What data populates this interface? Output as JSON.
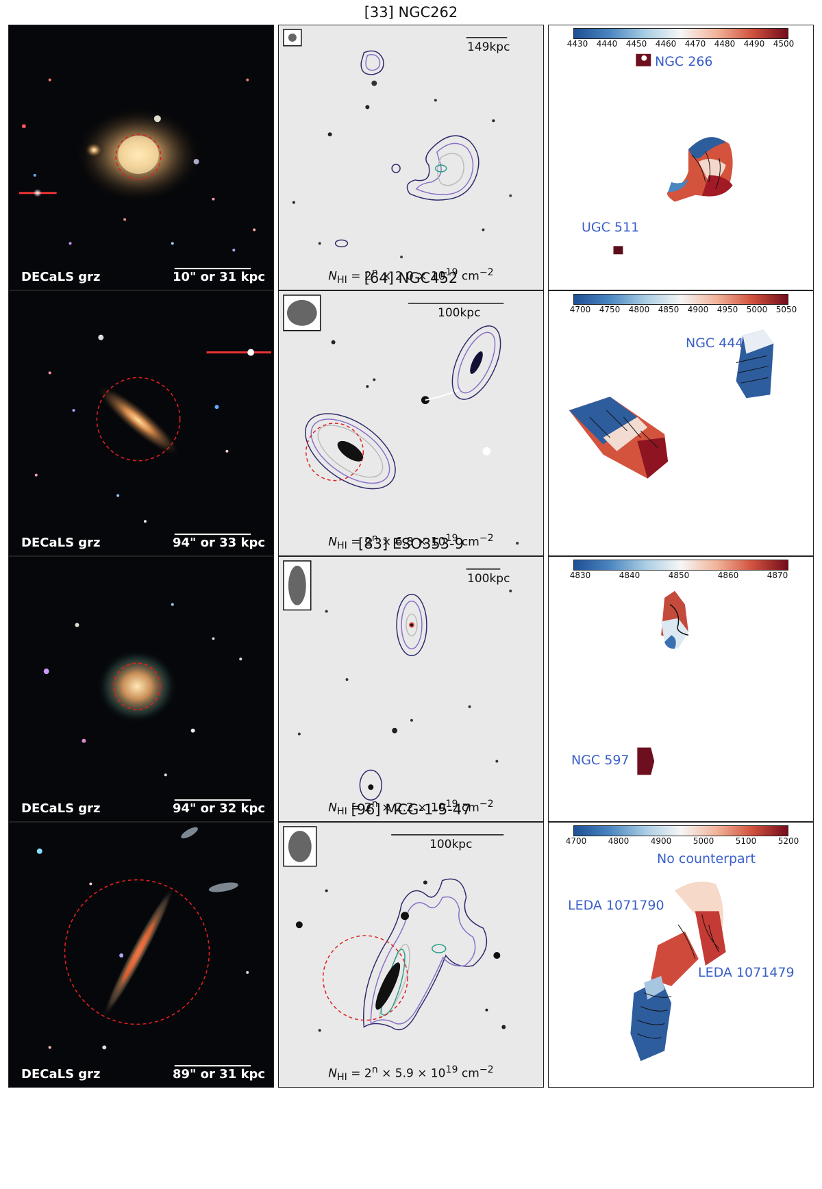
{
  "rows": [
    {
      "title": "[33] NGC262",
      "optical": {
        "survey": "DECaLS grz",
        "scale": "10\" or 31 kpc"
      },
      "hi": {
        "kpc": "149kpc",
        "nhi": "N_HI = 2^n × 2.0 × 10^19 cm^-2",
        "nhi_pre": "= 2",
        "nhi_exp": "n",
        "nhi_mid": " × 2.0 × 10",
        "nhi_pow": "19",
        "nhi_unit": " cm",
        "nhi_unit_pow": "−2"
      },
      "velocity": {
        "ticks": [
          "4430",
          "4440",
          "4450",
          "4460",
          "4470",
          "4480",
          "4490",
          "4500"
        ],
        "labels": [
          "NGC 266",
          "UGC 511"
        ]
      }
    },
    {
      "title": "[64] NGC452",
      "optical": {
        "survey": "DECaLS grz",
        "scale": "94\" or 33 kpc"
      },
      "hi": {
        "kpc": "100kpc",
        "nhi_pre": "= 2",
        "nhi_exp": "n",
        "nhi_mid": " × 6.8 × 10",
        "nhi_pow": "19",
        "nhi_unit": " cm",
        "nhi_unit_pow": "−2"
      },
      "velocity": {
        "ticks": [
          "4700",
          "4750",
          "4800",
          "4850",
          "4900",
          "4950",
          "5000",
          "5050"
        ],
        "labels": [
          "NGC 444"
        ]
      }
    },
    {
      "title": "[83] ESO353-9",
      "optical": {
        "survey": "DECaLS grz",
        "scale": "94\" or 32 kpc"
      },
      "hi": {
        "kpc": "100kpc",
        "nhi_pre": "= 2",
        "nhi_exp": "n",
        "nhi_mid": " × 2.2 × 10",
        "nhi_pow": "19",
        "nhi_unit": " cm",
        "nhi_unit_pow": "−2"
      },
      "velocity": {
        "ticks": [
          "4830",
          "4840",
          "4850",
          "4860",
          "4870"
        ],
        "labels": [
          "NGC 597"
        ]
      }
    },
    {
      "title": "[96] MCG-1-5-47",
      "optical": {
        "survey": "DECaLS grz",
        "scale": "89\" or 31 kpc"
      },
      "hi": {
        "kpc": "100kpc",
        "nhi_pre": "= 2",
        "nhi_exp": "n",
        "nhi_mid": " × 5.9 × 10",
        "nhi_pow": "19",
        "nhi_unit": " cm",
        "nhi_unit_pow": "−2"
      },
      "velocity": {
        "ticks": [
          "4700",
          "4800",
          "4900",
          "5000",
          "5100",
          "5200"
        ],
        "labels": [
          "No counterpart",
          "LEDA 1071790",
          "LEDA 1071479"
        ]
      }
    }
  ],
  "nhi_symbol": "N",
  "nhi_sub": "HI"
}
